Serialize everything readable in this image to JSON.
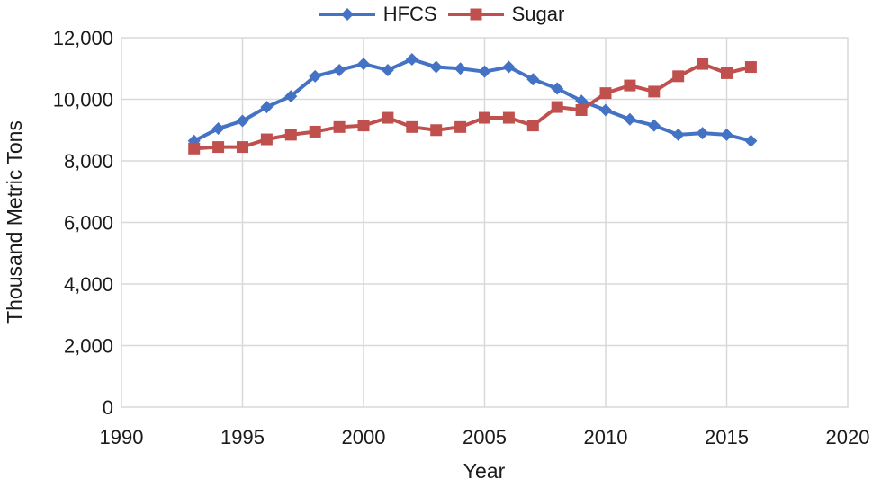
{
  "chart_data": {
    "type": "line",
    "title": "",
    "xlabel": "Year",
    "ylabel": "Thousand Metric Tons",
    "xlim": [
      1990,
      2020
    ],
    "ylim": [
      0,
      12000
    ],
    "grid": true,
    "legend_position": "top-center",
    "x_tick_values": [
      1990,
      1995,
      2000,
      2005,
      2010,
      2015,
      2020
    ],
    "x_tick_labels": [
      "1990",
      "1995",
      "2000",
      "2005",
      "2010",
      "2015",
      "2020"
    ],
    "y_tick_values": [
      0,
      2000,
      4000,
      6000,
      8000,
      10000,
      12000
    ],
    "y_tick_labels": [
      "0",
      "2,000",
      "4,000",
      "6,000",
      "8,000",
      "10,000",
      "12,000"
    ],
    "x": [
      1993,
      1994,
      1995,
      1996,
      1997,
      1998,
      1999,
      2000,
      2001,
      2002,
      2003,
      2004,
      2005,
      2006,
      2007,
      2008,
      2009,
      2010,
      2011,
      2012,
      2013,
      2014,
      2015,
      2016
    ],
    "series": [
      {
        "name": "HFCS",
        "color": "#4472C4",
        "marker": "diamond",
        "values": [
          8650,
          9050,
          9300,
          9750,
          10100,
          10750,
          10950,
          11150,
          10950,
          11300,
          11050,
          11000,
          10900,
          11050,
          10650,
          10350,
          9950,
          9650,
          9350,
          9150,
          8850,
          8900,
          8850,
          8650
        ]
      },
      {
        "name": "Sugar",
        "color": "#C0504D",
        "marker": "square",
        "values": [
          8400,
          8450,
          8450,
          8700,
          8850,
          8950,
          9100,
          9150,
          9400,
          9100,
          9000,
          9100,
          9400,
          9400,
          9150,
          9750,
          9650,
          10200,
          10450,
          10250,
          10750,
          11150,
          10850,
          11050
        ]
      }
    ],
    "gridline_color": "#D9D9D9",
    "text_color": "#1a1a1a"
  }
}
